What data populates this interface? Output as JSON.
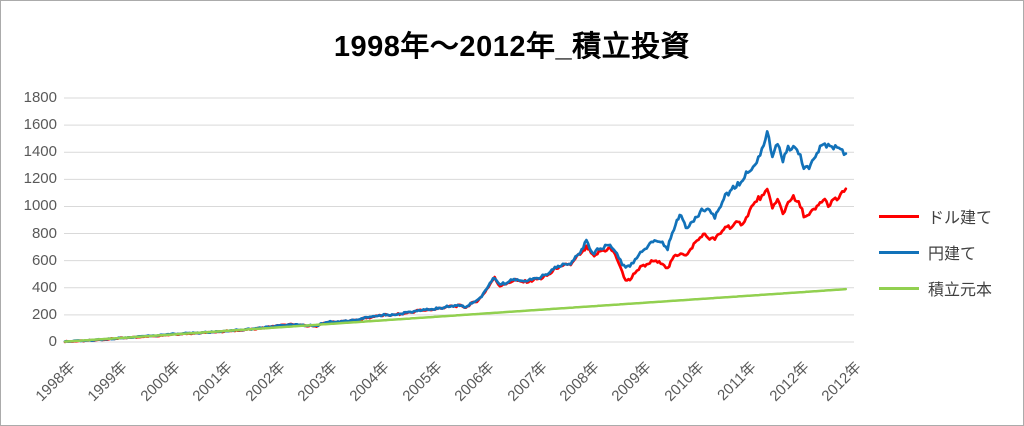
{
  "chart": {
    "title": "1998年～2012年_積立投資",
    "colors": {
      "grid": "#d9d9d9",
      "tick_text": "#595959",
      "legend_text": "#404040",
      "frame_border": "#ababab",
      "background": "#ffffff"
    }
  },
  "chart_data": {
    "type": "line",
    "title": "1998年～2012年_積立投資",
    "grid": "horizontal",
    "legend_position": "right",
    "ylim": [
      0,
      1800
    ],
    "y_ticks": [
      0,
      200,
      400,
      600,
      800,
      1000,
      1200,
      1400,
      1600,
      1800
    ],
    "x_tick_labels": [
      "1998年",
      "1999年",
      "2000年",
      "2001年",
      "2002年",
      "2003年",
      "2004年",
      "2005年",
      "2006年",
      "2007年",
      "2008年",
      "2009年",
      "2010年",
      "2011年",
      "2012年",
      "2012年"
    ],
    "x_unit": "year_index_0_to_15",
    "series": [
      {
        "name": "ドル建て",
        "color": "#fe0000",
        "volatile": true,
        "points": [
          [
            0,
            3
          ],
          [
            0.3,
            8
          ],
          [
            0.5,
            12
          ],
          [
            0.8,
            20
          ],
          [
            1,
            27
          ],
          [
            1.3,
            34
          ],
          [
            1.5,
            40
          ],
          [
            1.8,
            48
          ],
          [
            2,
            55
          ],
          [
            2.3,
            62
          ],
          [
            2.5,
            65
          ],
          [
            2.8,
            72
          ],
          [
            3,
            78
          ],
          [
            3.3,
            85
          ],
          [
            3.5,
            92
          ],
          [
            3.8,
            105
          ],
          [
            4,
            118
          ],
          [
            4.2,
            126
          ],
          [
            4.4,
            128
          ],
          [
            4.6,
            120
          ],
          [
            4.8,
            118
          ],
          [
            5,
            145
          ],
          [
            5.3,
            150
          ],
          [
            5.6,
            165
          ],
          [
            6,
            196
          ],
          [
            6.3,
            200
          ],
          [
            6.5,
            212
          ],
          [
            6.75,
            232
          ],
          [
            7,
            238
          ],
          [
            7.2,
            252
          ],
          [
            7.35,
            262
          ],
          [
            7.5,
            268
          ],
          [
            7.65,
            258
          ],
          [
            7.8,
            290
          ],
          [
            7.95,
            330
          ],
          [
            8.05,
            395
          ],
          [
            8.2,
            472
          ],
          [
            8.3,
            415
          ],
          [
            8.45,
            435
          ],
          [
            8.6,
            458
          ],
          [
            8.75,
            440
          ],
          [
            9,
            462
          ],
          [
            9.2,
            488
          ],
          [
            9.35,
            540
          ],
          [
            9.5,
            560
          ],
          [
            9.65,
            575
          ],
          [
            9.8,
            635
          ],
          [
            9.95,
            695
          ],
          [
            10.1,
            630
          ],
          [
            10.25,
            678
          ],
          [
            10.4,
            685
          ],
          [
            10.5,
            655
          ],
          [
            10.6,
            540
          ],
          [
            10.7,
            462
          ],
          [
            10.78,
            452
          ],
          [
            10.88,
            520
          ],
          [
            10.95,
            540
          ],
          [
            11.1,
            570
          ],
          [
            11.25,
            600
          ],
          [
            11.4,
            580
          ],
          [
            11.5,
            545
          ],
          [
            11.65,
            640
          ],
          [
            11.75,
            660
          ],
          [
            11.85,
            635
          ],
          [
            12,
            715
          ],
          [
            12.15,
            790
          ],
          [
            12.3,
            770
          ],
          [
            12.4,
            755
          ],
          [
            12.6,
            845
          ],
          [
            12.75,
            860
          ],
          [
            12.9,
            880
          ],
          [
            13,
            905
          ],
          [
            13.1,
            1000
          ],
          [
            13.2,
            1040
          ],
          [
            13.3,
            1075
          ],
          [
            13.4,
            1110
          ],
          [
            13.5,
            1005
          ],
          [
            13.6,
            1040
          ],
          [
            13.7,
            950
          ],
          [
            13.8,
            1030
          ],
          [
            13.9,
            1070
          ],
          [
            14,
            1020
          ],
          [
            14.1,
            940
          ],
          [
            14.2,
            930
          ],
          [
            14.35,
            1000
          ],
          [
            14.5,
            1050
          ],
          [
            14.6,
            1005
          ],
          [
            14.7,
            1055
          ],
          [
            14.8,
            1075
          ],
          [
            14.9,
            1130
          ]
        ]
      },
      {
        "name": "円建て",
        "color": "#1272b9",
        "volatile": true,
        "points": [
          [
            0,
            3
          ],
          [
            0.3,
            9
          ],
          [
            0.5,
            13
          ],
          [
            0.8,
            21
          ],
          [
            1,
            28
          ],
          [
            1.3,
            35
          ],
          [
            1.5,
            42
          ],
          [
            1.8,
            50
          ],
          [
            2,
            57
          ],
          [
            2.3,
            64
          ],
          [
            2.5,
            67
          ],
          [
            2.8,
            74
          ],
          [
            3,
            80
          ],
          [
            3.3,
            87
          ],
          [
            3.5,
            94
          ],
          [
            3.8,
            107
          ],
          [
            4,
            116
          ],
          [
            4.2,
            124
          ],
          [
            4.4,
            130
          ],
          [
            4.6,
            122
          ],
          [
            4.8,
            120
          ],
          [
            5,
            147
          ],
          [
            5.3,
            152
          ],
          [
            5.6,
            167
          ],
          [
            6,
            198
          ],
          [
            6.3,
            202
          ],
          [
            6.5,
            214
          ],
          [
            6.75,
            234
          ],
          [
            7,
            240
          ],
          [
            7.2,
            254
          ],
          [
            7.35,
            264
          ],
          [
            7.5,
            270
          ],
          [
            7.65,
            260
          ],
          [
            7.8,
            292
          ],
          [
            7.95,
            335
          ],
          [
            8.05,
            400
          ],
          [
            8.2,
            480
          ],
          [
            8.3,
            422
          ],
          [
            8.45,
            442
          ],
          [
            8.6,
            465
          ],
          [
            8.75,
            448
          ],
          [
            9,
            470
          ],
          [
            9.2,
            495
          ],
          [
            9.35,
            548
          ],
          [
            9.5,
            570
          ],
          [
            9.65,
            585
          ],
          [
            9.8,
            650
          ],
          [
            9.95,
            735
          ],
          [
            10.1,
            655
          ],
          [
            10.25,
            700
          ],
          [
            10.4,
            708
          ],
          [
            10.5,
            672
          ],
          [
            10.6,
            600
          ],
          [
            10.7,
            545
          ],
          [
            10.78,
            552
          ],
          [
            10.88,
            615
          ],
          [
            10.95,
            640
          ],
          [
            11.1,
            700
          ],
          [
            11.25,
            755
          ],
          [
            11.4,
            735
          ],
          [
            11.5,
            695
          ],
          [
            11.65,
            870
          ],
          [
            11.73,
            945
          ],
          [
            11.85,
            855
          ],
          [
            12,
            895
          ],
          [
            12.15,
            965
          ],
          [
            12.3,
            985
          ],
          [
            12.4,
            915
          ],
          [
            12.6,
            1085
          ],
          [
            12.75,
            1130
          ],
          [
            12.9,
            1180
          ],
          [
            13,
            1235
          ],
          [
            13.1,
            1275
          ],
          [
            13.2,
            1330
          ],
          [
            13.3,
            1420
          ],
          [
            13.4,
            1540
          ],
          [
            13.5,
            1390
          ],
          [
            13.6,
            1460
          ],
          [
            13.7,
            1350
          ],
          [
            13.8,
            1420
          ],
          [
            13.9,
            1445
          ],
          [
            14,
            1395
          ],
          [
            14.1,
            1300
          ],
          [
            14.2,
            1280
          ],
          [
            14.35,
            1400
          ],
          [
            14.5,
            1470
          ],
          [
            14.6,
            1425
          ],
          [
            14.7,
            1445
          ],
          [
            14.8,
            1420
          ],
          [
            14.9,
            1390
          ]
        ]
      },
      {
        "name": "積立元本",
        "color": "#92d050",
        "volatile": false,
        "points": [
          [
            0,
            3
          ],
          [
            1,
            28
          ],
          [
            2,
            54
          ],
          [
            3,
            80
          ],
          [
            4,
            106
          ],
          [
            5,
            132
          ],
          [
            6,
            158
          ],
          [
            7,
            184
          ],
          [
            8,
            210
          ],
          [
            9,
            236
          ],
          [
            10,
            262
          ],
          [
            11,
            288
          ],
          [
            12,
            314
          ],
          [
            13,
            340
          ],
          [
            14,
            366
          ],
          [
            14.9,
            390
          ]
        ]
      }
    ]
  }
}
